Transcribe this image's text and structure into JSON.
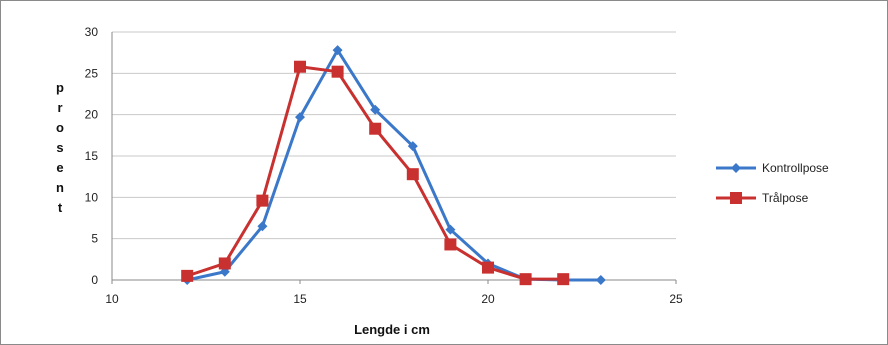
{
  "chart_data": {
    "type": "line",
    "xlabel": "Lengde i cm",
    "ylabel": "prosent",
    "xlim": [
      10,
      25
    ],
    "ylim": [
      0,
      30
    ],
    "xticks": [
      10,
      15,
      20,
      25
    ],
    "yticks": [
      0,
      5,
      10,
      15,
      20,
      25,
      30
    ],
    "grid": "horizontal",
    "legend_position": "right",
    "series": [
      {
        "name": "Kontrollpose",
        "color": "#3b78c9",
        "marker": "diamond",
        "x": [
          12,
          13,
          14,
          15,
          16,
          17,
          18,
          19,
          20,
          21,
          22,
          23
        ],
        "y": [
          0,
          1,
          6.5,
          19.7,
          27.8,
          20.6,
          16.2,
          6.1,
          2,
          0.1,
          0,
          0
        ]
      },
      {
        "name": "Trålpose",
        "color": "#c8312f",
        "marker": "square",
        "x": [
          12,
          13,
          14,
          15,
          16,
          17,
          18,
          19,
          20,
          21,
          22
        ],
        "y": [
          0.5,
          2,
          9.6,
          25.8,
          25.2,
          18.3,
          12.8,
          4.3,
          1.5,
          0.1,
          0.1
        ]
      }
    ]
  }
}
